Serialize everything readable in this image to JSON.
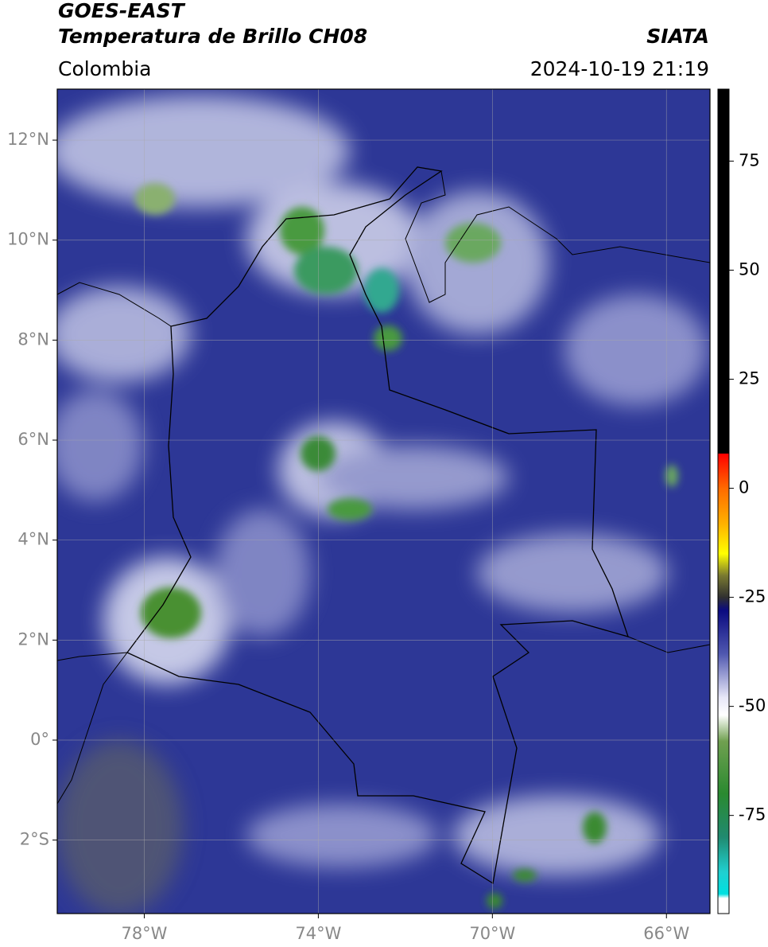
{
  "map": {
    "title": "GOES-EAST",
    "subtitle": "Temperatura de Brillo CH08",
    "region": "Colombia",
    "source": "SIATA",
    "timestamp": "2024-10-19 21:19",
    "xlim": [
      -80,
      -65
    ],
    "ylim": [
      -3.47,
      13.02
    ],
    "xticks": [
      {
        "value": -78,
        "label": "78°W"
      },
      {
        "value": -74,
        "label": "74°W"
      },
      {
        "value": -70,
        "label": "70°W"
      },
      {
        "value": -66,
        "label": "66°W"
      }
    ],
    "yticks": [
      {
        "value": 12,
        "label": "12°N"
      },
      {
        "value": 10,
        "label": "10°N"
      },
      {
        "value": 8,
        "label": "8°N"
      },
      {
        "value": 6,
        "label": "6°N"
      },
      {
        "value": 4,
        "label": "4°N"
      },
      {
        "value": 2,
        "label": "2°N"
      },
      {
        "value": 0,
        "label": "0°"
      },
      {
        "value": -2,
        "label": "2°S"
      }
    ],
    "grid": true,
    "colorbar": {
      "lim": [
        -97.5,
        91.5
      ],
      "ticks": [
        75,
        50,
        25,
        0,
        -25,
        -50,
        -75
      ],
      "colormap": [
        {
          "value": 91.5,
          "color": "#000000"
        },
        {
          "value": 8,
          "color": "#000000"
        },
        {
          "value": 7.9,
          "color": "#ff0000"
        },
        {
          "value": 0,
          "color": "#ff6a00"
        },
        {
          "value": -8,
          "color": "#ffb000"
        },
        {
          "value": -15,
          "color": "#ffff00"
        },
        {
          "value": -20,
          "color": "#7a7a30"
        },
        {
          "value": -25,
          "color": "#303030"
        },
        {
          "value": -28,
          "color": "#0a0a80"
        },
        {
          "value": -38,
          "color": "#5058b0"
        },
        {
          "value": -48,
          "color": "#e8e8f8"
        },
        {
          "value": -52,
          "color": "#ffffff"
        },
        {
          "value": -58,
          "color": "#70a050"
        },
        {
          "value": -70,
          "color": "#2a8a30"
        },
        {
          "value": -80,
          "color": "#208a70"
        },
        {
          "value": -88,
          "color": "#20d0d0"
        },
        {
          "value": -93,
          "color": "#00e0e0"
        },
        {
          "value": -94,
          "color": "#ffffff"
        },
        {
          "value": -97.5,
          "color": "#ffffff"
        }
      ]
    }
  }
}
